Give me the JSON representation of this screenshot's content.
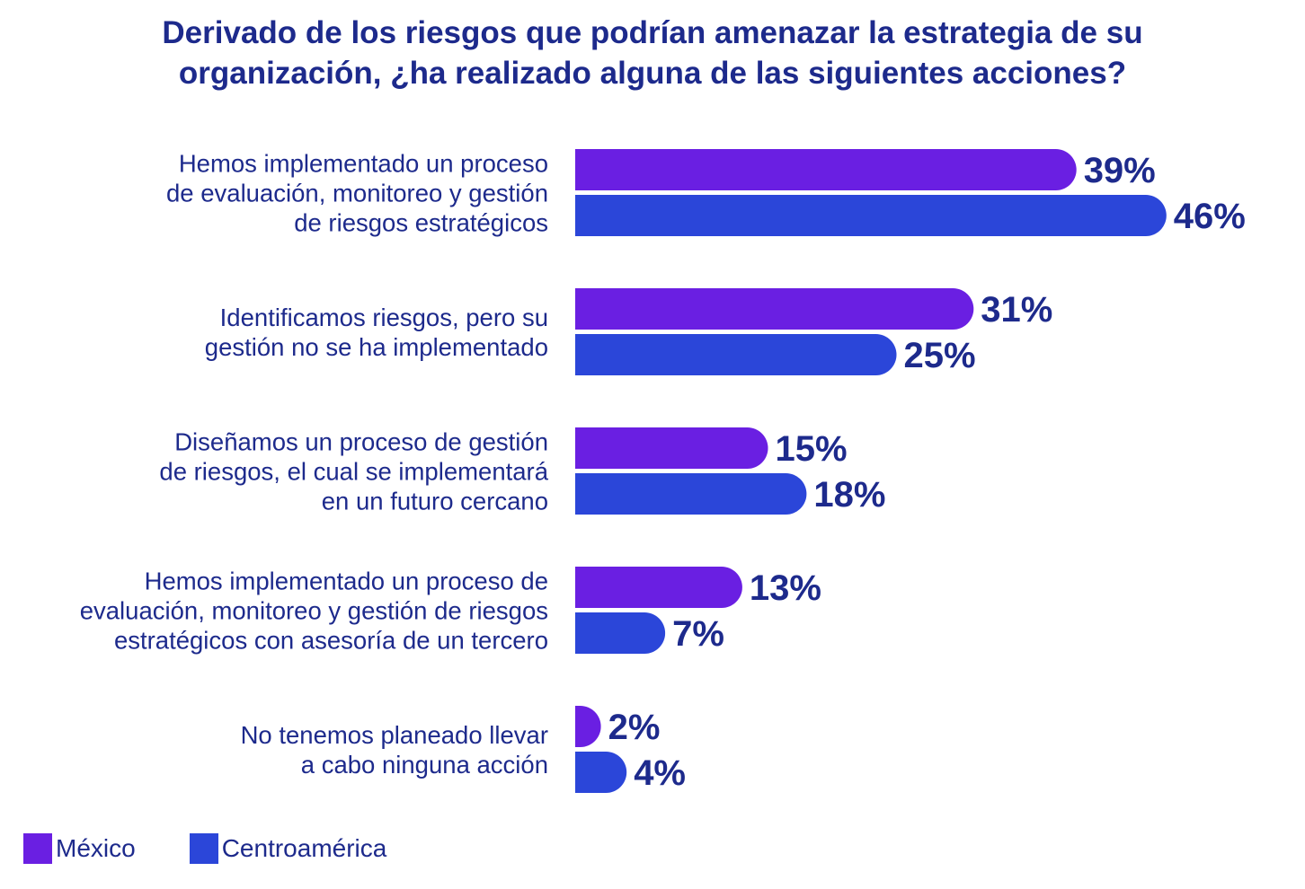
{
  "chart_data": {
    "type": "bar",
    "orientation": "horizontal",
    "title_lines": [
      "Derivado de los riesgos que podrían amenazar la estrategia de su",
      "organización, ¿ha realizado alguna de las siguientes acciones?"
    ],
    "categories": [
      [
        "Hemos implementado un proceso",
        "de evaluación, monitoreo y gestión",
        "de riesgos estratégicos"
      ],
      [
        "Identificamos riesgos, pero su",
        "gestión no se ha implementado"
      ],
      [
        "Diseñamos un proceso de gestión",
        "de riesgos, el cual se implementará",
        "en un futuro cercano"
      ],
      [
        "Hemos implementado un proceso de",
        "evaluación, monitoreo y gestión de riesgos",
        "estratégicos con asesoría de un tercero"
      ],
      [
        "No tenemos planeado llevar",
        "a cabo ninguna acción"
      ]
    ],
    "series": [
      {
        "name": "México",
        "color": "#6a1fe2",
        "values": [
          39,
          31,
          15,
          13,
          2
        ],
        "labels": [
          "39%",
          "31%",
          "15%",
          "13%",
          "2%"
        ]
      },
      {
        "name": "Centroamérica",
        "color": "#2b46d9",
        "values": [
          46,
          25,
          18,
          7,
          4
        ],
        "labels": [
          "46%",
          "25%",
          "18%",
          "7%",
          "4%"
        ]
      }
    ],
    "value_unit": "%",
    "xlim": [
      0,
      100
    ]
  },
  "legend": [
    {
      "label": "México",
      "color": "#6a1fe2"
    },
    {
      "label": "Centroamérica",
      "color": "#2b46d9"
    }
  ]
}
